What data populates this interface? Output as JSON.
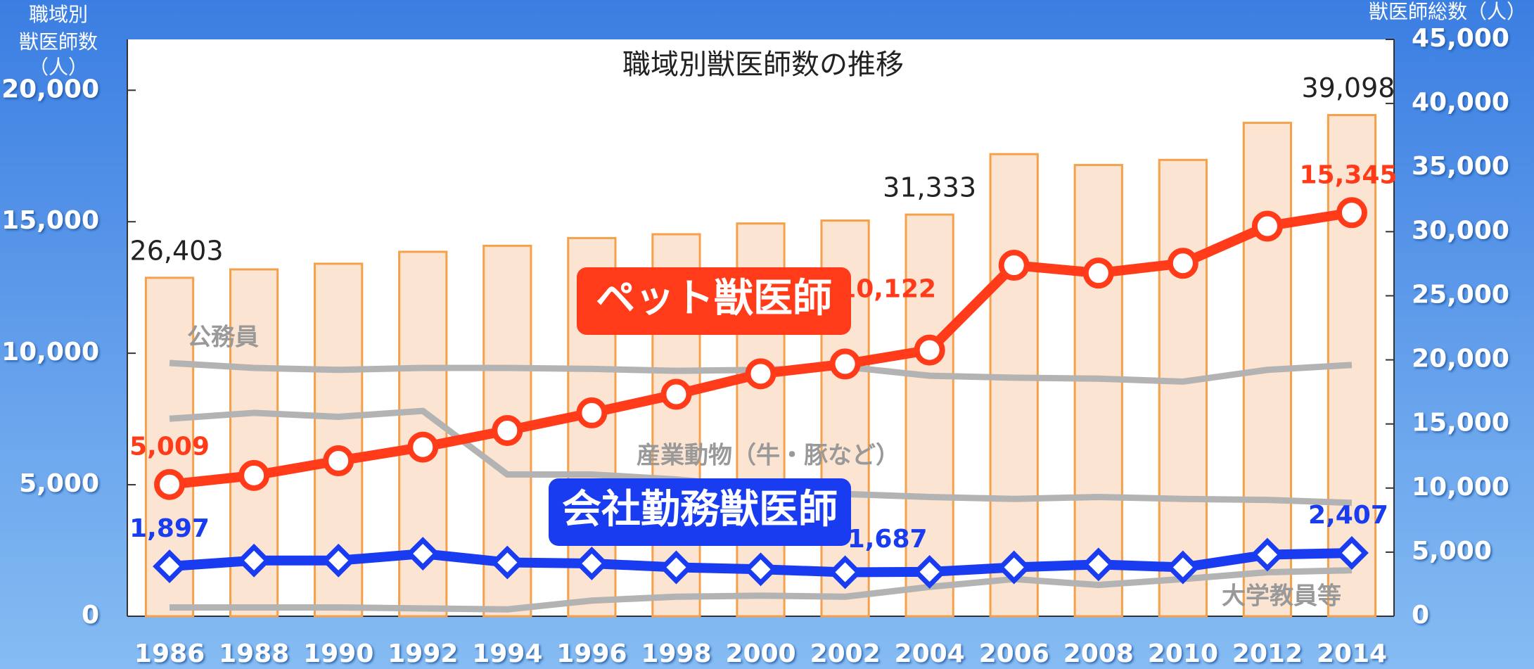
{
  "chart_data": {
    "type": "bar_line",
    "title": "職域別獣医師数の推移",
    "ylabel": [
      "職域別",
      "獣医師数",
      "（人）"
    ],
    "y2label": "獣医師総数（人）",
    "categories": [
      "1986",
      "1988",
      "1990",
      "1992",
      "1994",
      "1996",
      "1998",
      "2000",
      "2002",
      "2004",
      "2006",
      "2008",
      "2010",
      "2012",
      "2014"
    ],
    "ylim": [
      0,
      21933
    ],
    "yticks": [
      0,
      {
        "value": 5000,
        "label": "5,000"
      },
      {
        "value": 10000,
        "label": "10,000"
      },
      {
        "value": 15000,
        "label": "15,000"
      },
      {
        "value": 20000,
        "label": "20,000"
      }
    ],
    "y2lim": [
      0,
      45000
    ],
    "y2ticks": [
      0,
      {
        "value": 5000,
        "label": "5,000"
      },
      {
        "value": 10000,
        "label": "10,000"
      },
      {
        "value": 15000,
        "label": "15,000"
      },
      {
        "value": 20000,
        "label": "20,000"
      },
      {
        "value": 25000,
        "label": "25,000"
      },
      {
        "value": 30000,
        "label": "30,000"
      },
      {
        "value": 35000,
        "label": "35,000"
      },
      {
        "value": 40000,
        "label": "40,000"
      },
      {
        "value": 45000,
        "label": "45,000"
      }
    ],
    "bars": {
      "axis": "y2",
      "color": "#fce4d2",
      "edge_color": "#f5a04a",
      "values": [
        26403,
        27058,
        27500,
        28430,
        28900,
        29500,
        29800,
        30640,
        30870,
        31333,
        36050,
        35200,
        35600,
        38490,
        39098
      ],
      "value_labels": [
        "26,403",
        null,
        null,
        null,
        null,
        null,
        null,
        null,
        null,
        "31,333",
        null,
        null,
        null,
        null,
        "39,098"
      ]
    },
    "series": [
      {
        "name": "公務員",
        "color": "#b3b3b3",
        "values": [
          9628,
          9442,
          9368,
          9442,
          9442,
          9405,
          9331,
          9368,
          9480,
          9145,
          9071,
          9033,
          8922,
          9368,
          9554
        ]
      },
      {
        "name": "産業動物（牛・豚など）",
        "color": "#b3b3b3",
        "values": [
          7509,
          7732,
          7584,
          7807,
          5390,
          5390,
          5204,
          4907,
          4647,
          4535,
          4461,
          4535,
          4461,
          4424,
          4312
        ]
      },
      {
        "name": "大学教員等",
        "color": "#b3b3b3",
        "values": [
          335,
          335,
          335,
          297,
          260,
          595,
          743,
          781,
          743,
          1115,
          1413,
          1190,
          1413,
          1673,
          1747
        ]
      },
      {
        "name": "ペット獣医師",
        "color": "#ff3b1a",
        "marker": "circle",
        "values": [
          5009,
          5353,
          5911,
          6431,
          7063,
          7732,
          8439,
          9219,
          9591,
          10122,
          13346,
          13048,
          13420,
          14833,
          15345
        ],
        "value_labels": [
          "5,009",
          null,
          null,
          null,
          null,
          null,
          null,
          null,
          null,
          "10,122",
          null,
          null,
          null,
          null,
          "15,345"
        ]
      },
      {
        "name": "会社勤務獣医師",
        "color": "#1a3cf0",
        "marker": "diamond",
        "values": [
          1897,
          2119,
          2119,
          2379,
          2045,
          2007,
          1859,
          1784,
          1673,
          1687,
          1859,
          1970,
          1859,
          2342,
          2407
        ],
        "value_labels": [
          "1,897",
          null,
          null,
          null,
          null,
          null,
          null,
          null,
          null,
          "1,687",
          null,
          null,
          null,
          null,
          "2,407"
        ]
      }
    ]
  }
}
